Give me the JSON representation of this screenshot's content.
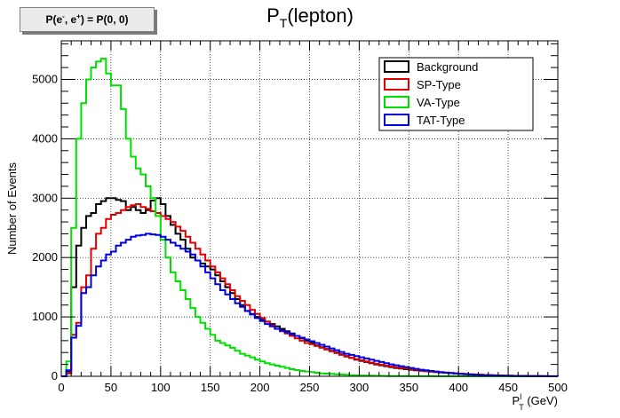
{
  "param_box": {
    "left": "P(e",
    "sup1": "-",
    "mid": ", e",
    "sup2": "+",
    "right": ") = P(0, 0)"
  },
  "chart_data": {
    "type": "step-histogram",
    "title": {
      "main": "P",
      "sub": "T",
      "rest": "(lepton)"
    },
    "xlabel": {
      "main": "P",
      "sup": "l",
      "sub": "T",
      "rest": " (GeV)"
    },
    "ylabel": "Number of Events",
    "xlim": [
      0,
      500
    ],
    "ylim": [
      0,
      5650
    ],
    "xticks": [
      0,
      50,
      100,
      150,
      200,
      250,
      300,
      350,
      400,
      450,
      500
    ],
    "yticks": [
      0,
      1000,
      2000,
      3000,
      4000,
      5000
    ],
    "bin_width": 5,
    "grid": true,
    "legend_position": "top-right",
    "series": [
      {
        "name": "Background",
        "color": "#000000",
        "values": [
          0,
          80,
          1500,
          2200,
          2500,
          2700,
          2750,
          2900,
          2950,
          3000,
          3000,
          2970,
          2950,
          2800,
          2850,
          2800,
          2750,
          2800,
          2960,
          3000,
          2900,
          2700,
          2550,
          2400,
          2300,
          2150,
          2000,
          1950,
          1900,
          1850,
          1800,
          1700,
          1600,
          1500,
          1400,
          1300,
          1200,
          1100,
          1050,
          1000,
          950,
          920,
          880,
          840,
          800,
          760,
          720,
          680,
          640,
          600,
          560,
          520,
          490,
          460,
          430,
          400,
          370,
          340,
          310,
          280,
          260,
          240,
          220,
          200,
          185,
          170,
          155,
          140,
          130,
          120,
          110,
          100,
          92,
          85,
          78,
          70,
          64,
          58,
          52,
          46,
          40,
          36,
          32,
          28,
          25,
          22,
          19,
          16,
          14,
          12,
          10,
          8,
          7,
          6,
          5,
          4,
          3,
          2,
          2,
          1
        ]
      },
      {
        "name": "SP-Type",
        "color": "#e00000",
        "values": [
          0,
          50,
          700,
          900,
          1500,
          1700,
          2150,
          2400,
          2500,
          2650,
          2720,
          2750,
          2800,
          2850,
          2880,
          2900,
          2850,
          2820,
          2780,
          2750,
          2700,
          2650,
          2600,
          2520,
          2450,
          2350,
          2250,
          2150,
          2050,
          1950,
          1850,
          1750,
          1650,
          1550,
          1450,
          1350,
          1270,
          1200,
          1120,
          1050,
          980,
          920,
          860,
          800,
          760,
          720,
          680,
          640,
          600,
          560,
          540,
          510,
          480,
          450,
          420,
          390,
          360,
          330,
          310,
          290,
          270,
          250,
          230,
          210,
          195,
          180,
          165,
          150,
          140,
          130,
          120,
          110,
          100,
          90,
          82,
          75,
          68,
          61,
          55,
          50,
          45,
          40,
          35,
          30,
          26,
          22,
          18,
          15,
          12,
          10,
          8,
          6,
          5,
          4,
          3,
          2,
          1,
          1,
          0,
          0
        ]
      },
      {
        "name": "VA-Type",
        "color": "#00e000",
        "values": [
          0,
          250,
          2500,
          4000,
          4600,
          5000,
          5200,
          5300,
          5350,
          5100,
          4900,
          4900,
          4500,
          4000,
          3700,
          3500,
          3400,
          3200,
          3000,
          2700,
          2300,
          2000,
          1750,
          1600,
          1450,
          1300,
          1150,
          1000,
          900,
          800,
          700,
          600,
          560,
          520,
          480,
          430,
          380,
          350,
          320,
          280,
          250,
          220,
          200,
          180,
          160,
          140,
          120,
          105,
          90,
          80,
          70,
          60,
          50,
          45,
          40,
          35,
          30,
          25,
          20,
          17,
          14,
          12,
          10,
          8,
          7,
          6,
          5,
          4,
          3,
          3,
          2,
          2,
          1,
          1,
          1,
          0,
          0,
          0,
          0,
          0,
          0,
          0,
          0,
          0,
          0,
          0,
          0,
          0,
          0,
          0,
          0,
          0,
          0,
          0,
          0,
          0,
          0,
          0,
          0,
          0
        ]
      },
      {
        "name": "TAT-Type",
        "color": "#0000e0",
        "values": [
          0,
          100,
          650,
          850,
          1400,
          1500,
          1700,
          1850,
          1950,
          2050,
          2100,
          2200,
          2250,
          2300,
          2350,
          2370,
          2380,
          2400,
          2390,
          2380,
          2350,
          2300,
          2250,
          2200,
          2150,
          2100,
          2050,
          1950,
          1850,
          1750,
          1650,
          1550,
          1450,
          1380,
          1300,
          1230,
          1170,
          1100,
          1040,
          980,
          930,
          880,
          840,
          800,
          770,
          740,
          710,
          680,
          650,
          620,
          590,
          560,
          530,
          500,
          470,
          440,
          410,
          380,
          360,
          340,
          320,
          300,
          280,
          260,
          240,
          220,
          200,
          185,
          170,
          155,
          140,
          125,
          110,
          100,
          90,
          80,
          70,
          62,
          55,
          48,
          42,
          36,
          30,
          25,
          21,
          17,
          14,
          11,
          9,
          7,
          6,
          5,
          4,
          3,
          2,
          2,
          1,
          1,
          0,
          0
        ]
      }
    ]
  }
}
